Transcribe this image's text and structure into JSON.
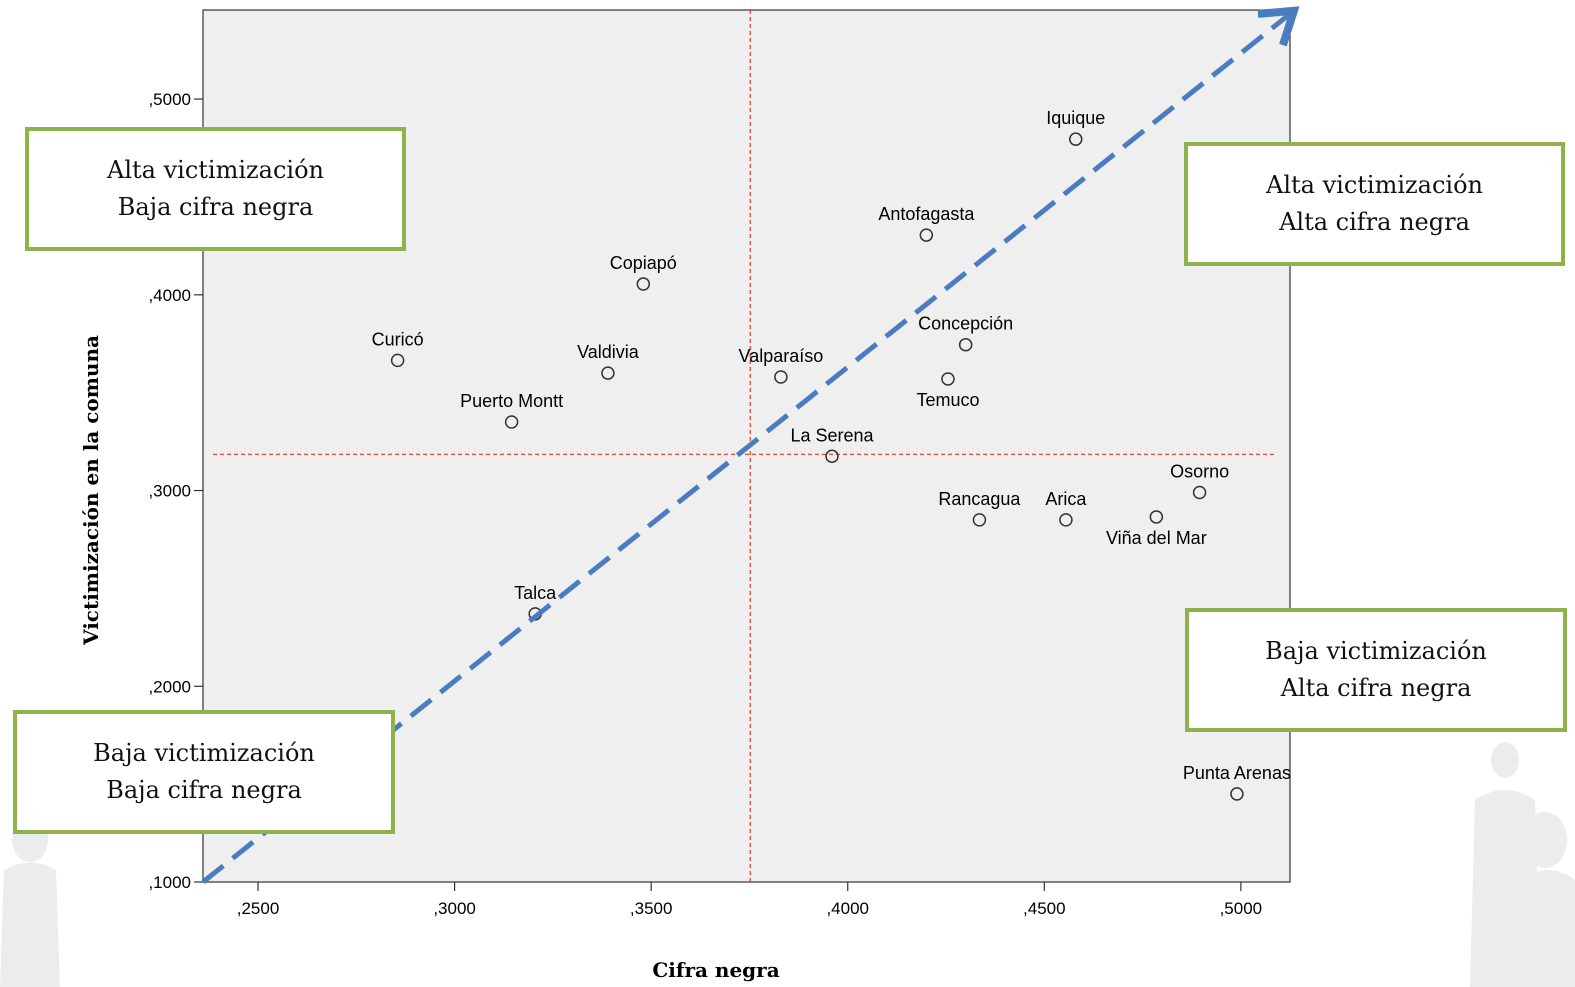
{
  "chart_data": {
    "type": "scatter",
    "xlabel": "Cifra negra",
    "ylabel": "Victimización en la comuna",
    "xlim": [
      0.236,
      0.5125
    ],
    "ylim": [
      0.1,
      0.5455
    ],
    "x_ticks": [
      0.25,
      0.3,
      0.35,
      0.4,
      0.45,
      0.5
    ],
    "x_tick_labels": [
      ",2500",
      ",3000",
      ",3500",
      ",4000",
      ",4500",
      ",5000"
    ],
    "y_ticks": [
      0.1,
      0.2,
      0.3,
      0.4,
      0.5
    ],
    "y_tick_labels": [
      ",1000",
      ",2000",
      ",3000",
      ",4000",
      ",5000"
    ],
    "grid": false,
    "reference_lines": {
      "x": 0.3752,
      "y": 0.3185,
      "color": "#e8332b"
    },
    "trend_arrow": {
      "from": [
        0.236,
        0.1
      ],
      "to": [
        0.5125,
        0.5435
      ],
      "color": "#4a7dc0"
    },
    "points": [
      {
        "label": "Iquique",
        "x": 0.458,
        "y": 0.4795,
        "label_pos": "above"
      },
      {
        "label": "Antofagasta",
        "x": 0.42,
        "y": 0.4305,
        "label_pos": "above"
      },
      {
        "label": "Copiapó",
        "x": 0.348,
        "y": 0.4055,
        "label_pos": "above"
      },
      {
        "label": "Concepción",
        "x": 0.43,
        "y": 0.3745,
        "label_pos": "above"
      },
      {
        "label": "Curicó",
        "x": 0.2855,
        "y": 0.3665,
        "label_pos": "above"
      },
      {
        "label": "Valdivia",
        "x": 0.339,
        "y": 0.36,
        "label_pos": "above"
      },
      {
        "label": "Valparaíso",
        "x": 0.383,
        "y": 0.358,
        "label_pos": "above"
      },
      {
        "label": "Temuco",
        "x": 0.4255,
        "y": 0.357,
        "label_pos": "below"
      },
      {
        "label": "Puerto Montt",
        "x": 0.3145,
        "y": 0.335,
        "label_pos": "above"
      },
      {
        "label": "La Serena",
        "x": 0.396,
        "y": 0.3175,
        "label_pos": "above"
      },
      {
        "label": "Osorno",
        "x": 0.4895,
        "y": 0.299,
        "label_pos": "above"
      },
      {
        "label": "Rancagua",
        "x": 0.4335,
        "y": 0.285,
        "label_pos": "above"
      },
      {
        "label": "Arica",
        "x": 0.4555,
        "y": 0.285,
        "label_pos": "above"
      },
      {
        "label": "Viña del Mar",
        "x": 0.4785,
        "y": 0.2865,
        "label_pos": "below"
      },
      {
        "label": "Talca",
        "x": 0.3205,
        "y": 0.237,
        "label_pos": "above"
      },
      {
        "label": "Punta Arenas",
        "x": 0.499,
        "y": 0.145,
        "label_pos": "above"
      }
    ]
  },
  "quadrants": {
    "top_left": {
      "line1": "Alta victimización",
      "line2": "Baja cifra negra"
    },
    "top_right": {
      "line1": "Alta victimización",
      "line2": "Alta cifra negra"
    },
    "bottom_right": {
      "line1": "Baja victimización",
      "line2": "Alta cifra negra"
    },
    "bottom_left": {
      "line1": "Baja victimización",
      "line2": "Baja cifra negra"
    }
  },
  "colors": {
    "plot_background": "#efefef",
    "box_border": "#8db34a",
    "reference_line": "#e8332b",
    "trend_arrow": "#4a7dc0"
  }
}
